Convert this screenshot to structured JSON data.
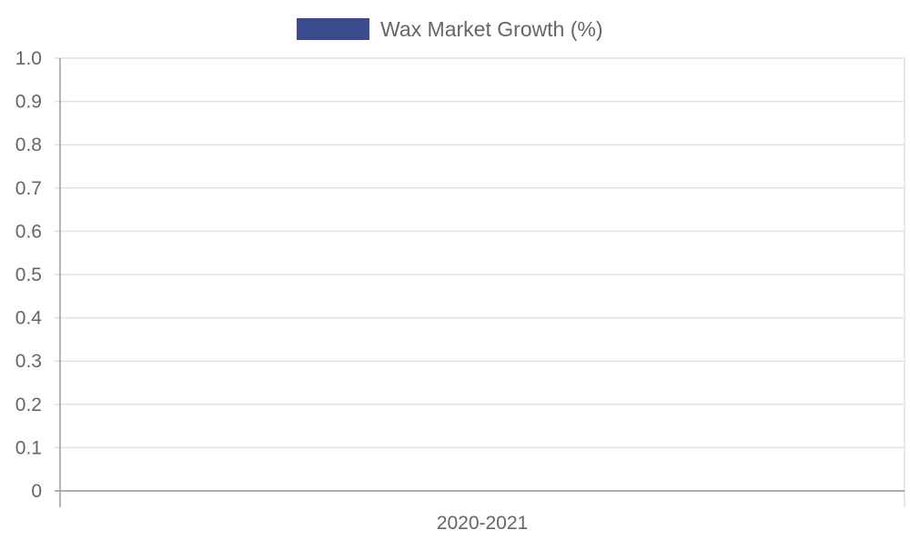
{
  "chart_data": {
    "type": "bar",
    "categories": [
      "2020-2021"
    ],
    "series": [
      {
        "name": "Wax Market Growth (%)",
        "values": [
          null
        ],
        "color": "#3b4b8c"
      }
    ],
    "ylim": [
      0,
      1.0
    ],
    "y_ticks": [
      "0",
      "0.1",
      "0.2",
      "0.3",
      "0.4",
      "0.5",
      "0.6",
      "0.7",
      "0.8",
      "0.9",
      "1.0"
    ],
    "grid": true,
    "legend_position": "top"
  }
}
